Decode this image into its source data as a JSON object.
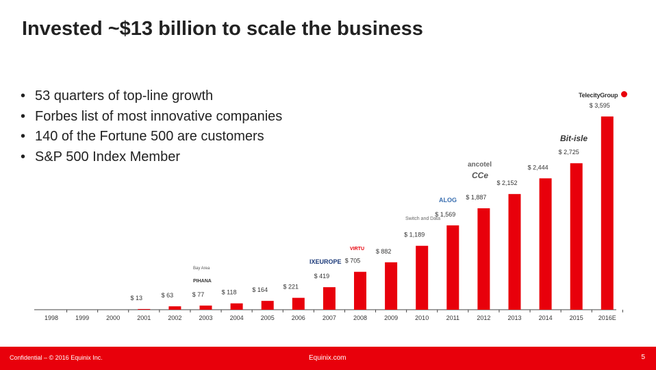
{
  "slide": {
    "title": "Invested ~$13 billion to scale the business",
    "bullets": [
      "53 quarters of top-line growth",
      "Forbes list of most innovative companies",
      "140 of the Fortune 500 are customers",
      "S&P 500 Index Member"
    ],
    "footer": {
      "confidential": "Confidential – © 2016 Equinix Inc.",
      "site": "Equinix.com",
      "page_number": "5"
    },
    "logos": {
      "telecity": "TelecityGroup",
      "bitisle": "Bit-isle",
      "ancotel": "ancotel",
      "ce": "CCe",
      "alog": "ALOG",
      "switchdata": "Switch and Data",
      "virtu": "VIRTU",
      "ixeurope": "IXEUROPE",
      "pihana": "PIHANA",
      "bay_area": "Bay Area"
    }
  },
  "chart_data": {
    "type": "bar",
    "categories": [
      "1998",
      "1999",
      "2000",
      "2001",
      "2002",
      "2003",
      "2004",
      "2005",
      "2006",
      "2007",
      "2008",
      "2009",
      "2010",
      "2011",
      "2012",
      "2013",
      "2014",
      "2015",
      "2016E"
    ],
    "values": [
      null,
      null,
      null,
      13,
      63,
      77,
      118,
      164,
      221,
      419,
      705,
      882,
      1189,
      1569,
      1887,
      2152,
      2444,
      2725,
      3595
    ],
    "data_labels": [
      "",
      "",
      "",
      "$ 13",
      "$ 63",
      "$ 77",
      "$ 118",
      "$ 164",
      "$ 221",
      "$ 419",
      "$ 705",
      "$ 882",
      "$ 1,189",
      "$ 1,569",
      "$ 1,887",
      "$ 2,152",
      "$ 2,444",
      "$ 2,725",
      "$ 3,595"
    ],
    "colors": {
      "bar": "#e8000b",
      "text": "#333333",
      "axis": "#444444"
    },
    "grid": false,
    "legend": "none"
  }
}
